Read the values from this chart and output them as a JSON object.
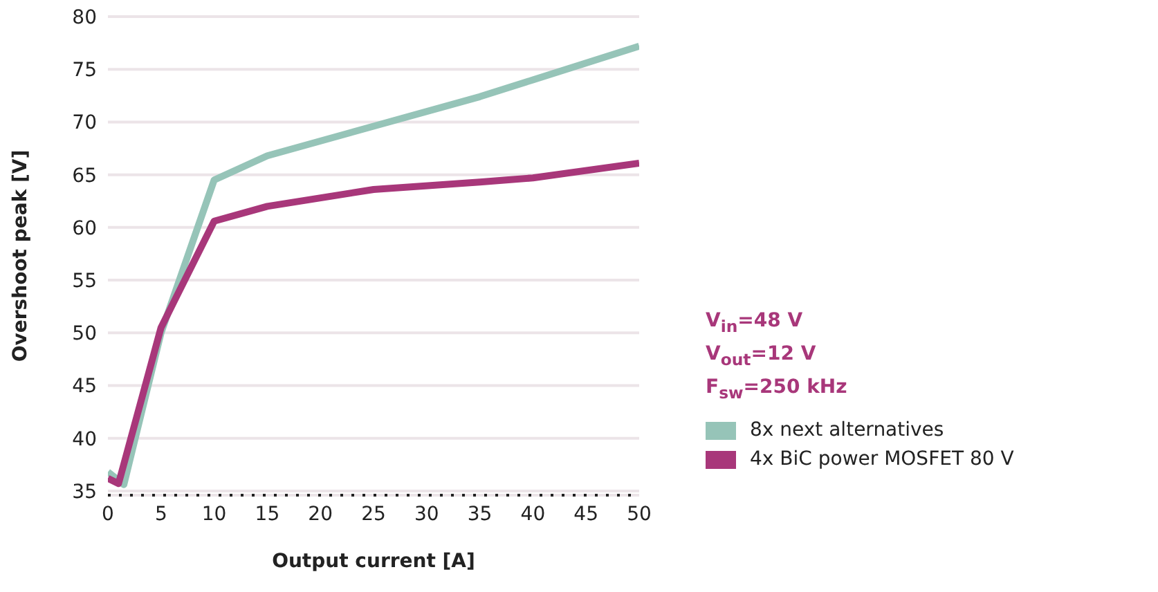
{
  "chart_data": {
    "type": "line",
    "xlabel": "Output current [A]",
    "ylabel": "Overshoot peak [V]",
    "xlim": [
      0,
      50
    ],
    "xticks": [
      0,
      5,
      10,
      15,
      20,
      25,
      30,
      35,
      40,
      45,
      50
    ],
    "ylim": [
      34.6,
      80
    ],
    "yticks": [
      35,
      40,
      45,
      50,
      55,
      60,
      65,
      70,
      75,
      80
    ],
    "grid": "y",
    "legend": "right",
    "line_style": "solid",
    "marker": "none",
    "annotations": [
      "V$_{in}$=48 V",
      "V$_{out}$=12 V",
      "F$_{sw}$=250 kHz"
    ],
    "series": [
      {
        "name": "8x next alternatives",
        "color": "#96c4b8",
        "x": [
          0,
          1.5,
          5,
          10,
          15,
          25,
          35,
          40,
          50
        ],
        "values": [
          36.8,
          35.6,
          50,
          64.5,
          66.8,
          69.6,
          72.4,
          74,
          77.2
        ]
      },
      {
        "name": "4x BiC power MOSFET 80 V",
        "color": "#a8377a",
        "x": [
          0,
          1,
          5,
          10,
          15,
          25,
          35,
          40,
          50
        ],
        "values": [
          36.2,
          35.7,
          50.5,
          60.6,
          62,
          63.6,
          64.3,
          64.7,
          66.1
        ]
      }
    ]
  }
}
